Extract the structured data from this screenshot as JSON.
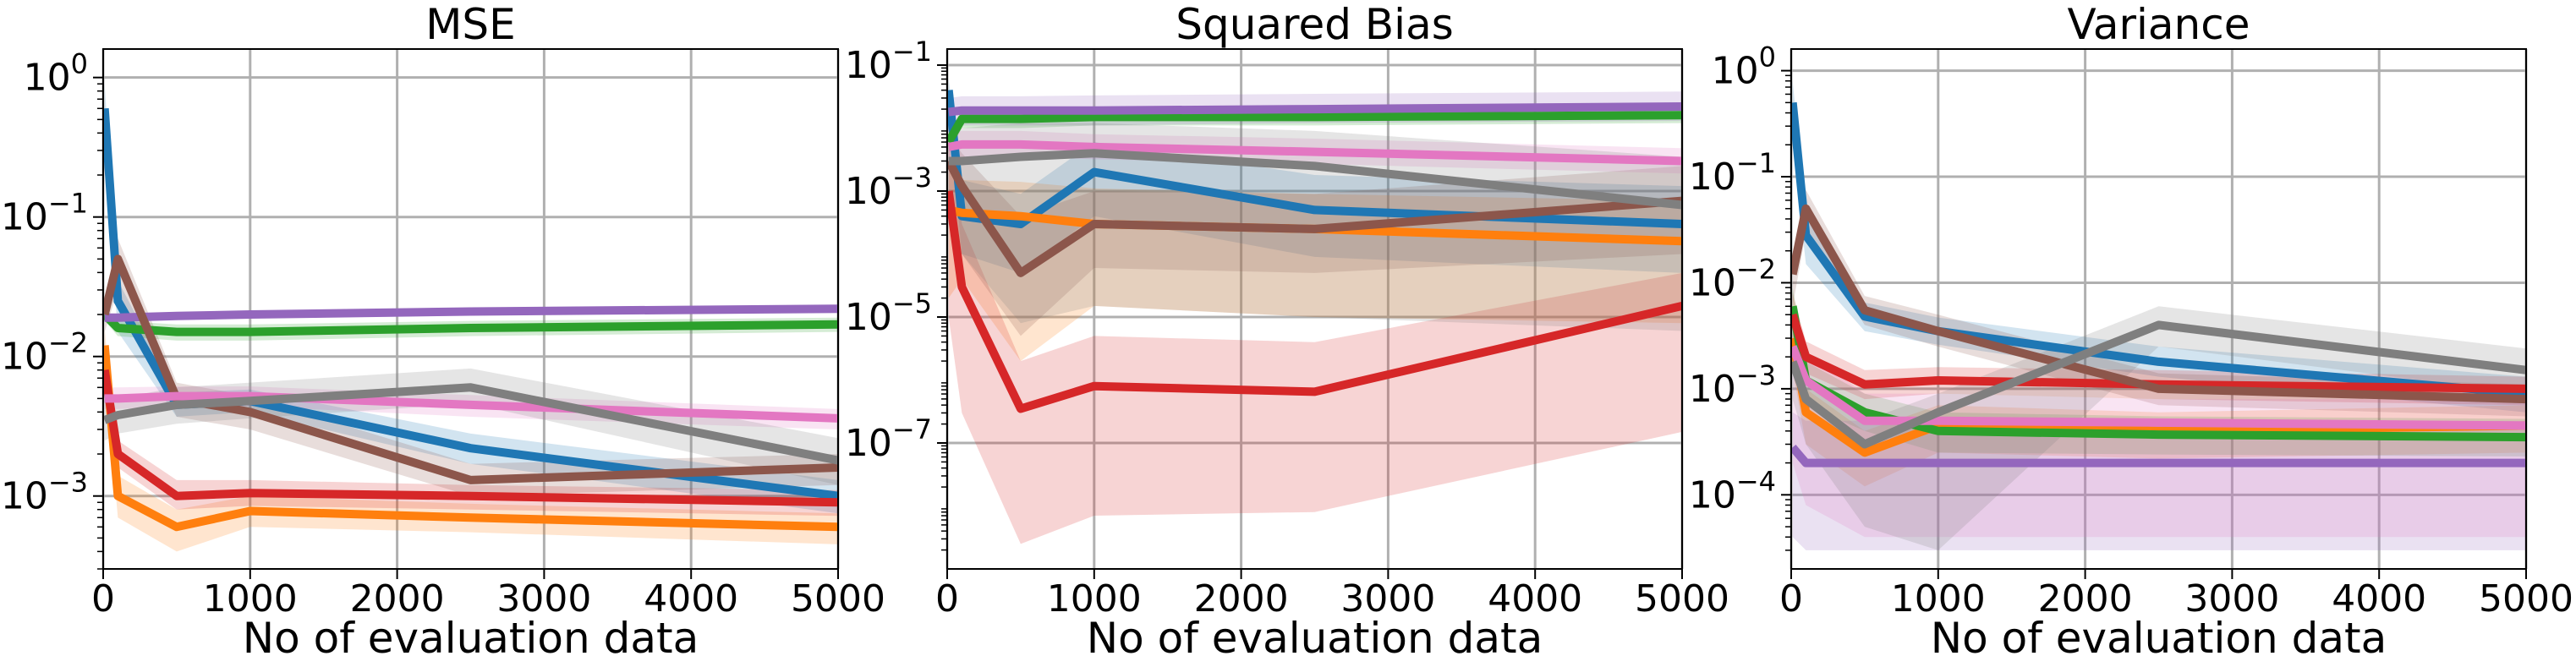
{
  "chart_data": [
    {
      "type": "line",
      "title": "MSE",
      "xlabel": "No of evaluation data",
      "ylabel": "",
      "yscale": "log",
      "xlim": [
        0,
        5000
      ],
      "ylim": [
        0.0003,
        1.6
      ],
      "grid": true,
      "x_ticks": [
        0,
        1000,
        2000,
        3000,
        4000,
        5000
      ],
      "y_ticks": [
        {
          "value": 1,
          "label": "10^0"
        },
        {
          "value": 0.1,
          "label": "10^-1"
        },
        {
          "value": 0.01,
          "label": "10^-2"
        },
        {
          "value": 0.001,
          "label": "10^-3"
        }
      ],
      "x": [
        10,
        100,
        500,
        1000,
        2500,
        5000
      ],
      "series": [
        {
          "color": "#1f77b4",
          "values": [
            0.6,
            0.025,
            0.0045,
            0.0048,
            0.0022,
            0.001
          ],
          "lower": [
            0.25,
            0.015,
            0.0037,
            0.004,
            0.0017,
            0.00075
          ],
          "upper": [
            0.9,
            0.035,
            0.0055,
            0.0058,
            0.0028,
            0.0013
          ]
        },
        {
          "color": "#ff7f0e",
          "values": [
            0.012,
            0.001,
            0.0006,
            0.00078,
            0.0007,
            0.0006
          ],
          "lower": [
            0.008,
            0.0007,
            0.0004,
            0.0006,
            0.00055,
            0.00045
          ],
          "upper": [
            0.016,
            0.0014,
            0.0008,
            0.001,
            0.00088,
            0.00075
          ]
        },
        {
          "color": "#2ca02c",
          "values": [
            0.02,
            0.016,
            0.015,
            0.015,
            0.016,
            0.017
          ],
          "lower": [
            0.018,
            0.014,
            0.013,
            0.013,
            0.014,
            0.015
          ],
          "upper": [
            0.022,
            0.018,
            0.017,
            0.017,
            0.018,
            0.019
          ]
        },
        {
          "color": "#d62728",
          "values": [
            0.008,
            0.002,
            0.001,
            0.00105,
            0.001,
            0.0009
          ],
          "lower": [
            0.006,
            0.0016,
            0.0008,
            0.00085,
            0.0008,
            0.00072
          ],
          "upper": [
            0.01,
            0.0025,
            0.0013,
            0.0013,
            0.0012,
            0.0011
          ]
        },
        {
          "color": "#9467bd",
          "values": [
            0.019,
            0.019,
            0.0195,
            0.02,
            0.021,
            0.022
          ],
          "lower": [
            0.018,
            0.018,
            0.0185,
            0.019,
            0.02,
            0.021
          ],
          "upper": [
            0.02,
            0.02,
            0.0205,
            0.021,
            0.022,
            0.023
          ]
        },
        {
          "color": "#8c564b",
          "values": [
            0.02,
            0.05,
            0.005,
            0.004,
            0.0013,
            0.0016
          ],
          "lower": [
            0.015,
            0.03,
            0.0037,
            0.003,
            0.001,
            0.0012
          ],
          "upper": [
            0.025,
            0.07,
            0.0065,
            0.0052,
            0.0017,
            0.002
          ]
        },
        {
          "color": "#e377c2",
          "values": [
            0.005,
            0.005,
            0.0052,
            0.0052,
            0.0045,
            0.0036
          ],
          "lower": [
            0.0042,
            0.0042,
            0.0044,
            0.0044,
            0.0037,
            0.003
          ],
          "upper": [
            0.006,
            0.006,
            0.0061,
            0.0061,
            0.0053,
            0.0042
          ]
        },
        {
          "color": "#7f7f7f",
          "values": [
            0.0035,
            0.0038,
            0.0045,
            0.0048,
            0.006,
            0.0018
          ],
          "lower": [
            0.0025,
            0.0028,
            0.0033,
            0.0036,
            0.0046,
            0.0012
          ],
          "upper": [
            0.0048,
            0.005,
            0.006,
            0.0065,
            0.0082,
            0.0026
          ]
        }
      ]
    },
    {
      "type": "line",
      "title": "Squared Bias",
      "xlabel": "No of evaluation data",
      "ylabel": "",
      "yscale": "log",
      "xlim": [
        0,
        5000
      ],
      "ylim": [
        1e-09,
        0.18
      ],
      "grid": true,
      "x_ticks": [
        0,
        1000,
        2000,
        3000,
        4000,
        5000
      ],
      "y_ticks": [
        {
          "value": 0.1,
          "label": "10^-1"
        },
        {
          "value": 0.001,
          "label": "10^-3"
        },
        {
          "value": 1e-05,
          "label": "10^-5"
        },
        {
          "value": 1e-07,
          "label": "10^-7"
        }
      ],
      "x": [
        10,
        100,
        500,
        1000,
        2500,
        5000
      ],
      "series": [
        {
          "color": "#1f77b4",
          "values": [
            0.04,
            0.0004,
            0.0003,
            0.002,
            0.0005,
            0.0003
          ],
          "lower": [
            0.015,
            0.0001,
            5e-05,
            0.0004,
            9e-05,
            5e-05
          ],
          "upper": [
            0.06,
            0.0015,
            0.0009,
            0.006,
            0.0018,
            0.0012
          ]
        },
        {
          "color": "#ff7f0e",
          "values": [
            0.0005,
            0.00045,
            0.0004,
            0.0003,
            0.00025,
            0.00016
          ],
          "lower": [
            2e-05,
            4e-05,
            2e-06,
            1.5e-05,
            1e-05,
            8e-06
          ],
          "upper": [
            0.002,
            0.0015,
            0.0014,
            0.0011,
            0.0009,
            0.0007
          ]
        },
        {
          "color": "#2ca02c",
          "values": [
            0.006,
            0.014,
            0.014,
            0.015,
            0.015,
            0.016
          ],
          "lower": [
            0.004,
            0.01,
            0.01,
            0.011,
            0.011,
            0.012
          ],
          "upper": [
            0.008,
            0.019,
            0.019,
            0.02,
            0.02,
            0.021
          ]
        },
        {
          "color": "#d62728",
          "values": [
            0.001,
            3e-05,
            3.5e-07,
            8e-07,
            6.5e-07,
            1.5e-05
          ],
          "lower": [
            1e-05,
            3e-07,
            2.5e-09,
            7e-09,
            8e-09,
            1.5e-07
          ],
          "upper": [
            0.005,
            0.0003,
            2e-06,
            5e-06,
            4e-06,
            5e-05
          ]
        },
        {
          "color": "#9467bd",
          "values": [
            0.018,
            0.019,
            0.019,
            0.019,
            0.02,
            0.022
          ],
          "lower": [
            0.01,
            0.011,
            0.011,
            0.011,
            0.012,
            0.013
          ],
          "upper": [
            0.03,
            0.032,
            0.032,
            0.033,
            0.035,
            0.038
          ]
        },
        {
          "color": "#8c564b",
          "values": [
            0.003,
            0.0012,
            5e-05,
            0.0003,
            0.00025,
            0.0007
          ],
          "lower": [
            0.0003,
            0.0001,
            5e-06,
            6e-05,
            5e-05,
            0.0001
          ],
          "upper": [
            0.008,
            0.004,
            0.0004,
            0.001,
            0.0009,
            0.0025
          ]
        },
        {
          "color": "#e377c2",
          "values": [
            0.005,
            0.0055,
            0.0055,
            0.005,
            0.0042,
            0.003
          ],
          "lower": [
            0.003,
            0.0035,
            0.0035,
            0.0032,
            0.0027,
            0.0019
          ],
          "upper": [
            0.008,
            0.009,
            0.009,
            0.008,
            0.0068,
            0.0048
          ]
        },
        {
          "color": "#7f7f7f",
          "values": [
            0.003,
            0.003,
            0.0035,
            0.004,
            0.0025,
            0.0006
          ],
          "lower": [
            0.0003,
            0.0001,
            8e-06,
            1.5e-05,
            1e-05,
            6e-06
          ],
          "upper": [
            0.01,
            0.01,
            0.012,
            0.012,
            0.009,
            0.0035
          ]
        }
      ]
    },
    {
      "type": "line",
      "title": "Variance",
      "xlabel": "No of evaluation data",
      "ylabel": "",
      "yscale": "log",
      "xlim": [
        0,
        5000
      ],
      "ylim": [
        2e-05,
        1.6
      ],
      "grid": true,
      "x_ticks": [
        0,
        1000,
        2000,
        3000,
        4000,
        5000
      ],
      "y_ticks": [
        {
          "value": 1,
          "label": "10^0"
        },
        {
          "value": 0.1,
          "label": "10^-1"
        },
        {
          "value": 0.01,
          "label": "10^-2"
        },
        {
          "value": 0.001,
          "label": "10^-3"
        },
        {
          "value": 0.0001,
          "label": "10^-4"
        }
      ],
      "x": [
        10,
        100,
        500,
        1000,
        2500,
        5000
      ],
      "series": [
        {
          "color": "#1f77b4",
          "values": [
            0.5,
            0.028,
            0.0048,
            0.0035,
            0.0018,
            0.0009
          ],
          "lower": [
            0.2,
            0.015,
            0.0035,
            0.0026,
            0.0013,
            0.0006
          ],
          "upper": [
            0.8,
            0.045,
            0.0065,
            0.0047,
            0.0025,
            0.0013
          ]
        },
        {
          "color": "#ff7f0e",
          "values": [
            0.003,
            0.0006,
            0.00025,
            0.00045,
            0.0004,
            0.00045
          ],
          "lower": [
            0.0015,
            0.0003,
            0.00012,
            0.00025,
            0.00022,
            0.00025
          ],
          "upper": [
            0.005,
            0.001,
            0.0004,
            0.0007,
            0.0006,
            0.0007
          ]
        },
        {
          "color": "#2ca02c",
          "values": [
            0.006,
            0.0012,
            0.0006,
            0.0004,
            0.00037,
            0.00035
          ],
          "lower": [
            0.003,
            0.0007,
            0.0004,
            0.00025,
            0.00024,
            0.00023
          ],
          "upper": [
            0.009,
            0.0018,
            0.0009,
            0.0006,
            0.00055,
            0.00052
          ]
        },
        {
          "color": "#d62728",
          "values": [
            0.005,
            0.002,
            0.0011,
            0.0012,
            0.0011,
            0.001
          ],
          "lower": [
            0.003,
            0.0014,
            0.0008,
            0.0009,
            0.0008,
            0.0007
          ],
          "upper": [
            0.008,
            0.0028,
            0.0015,
            0.0016,
            0.0015,
            0.0013
          ]
        },
        {
          "color": "#9467bd",
          "values": [
            0.00028,
            0.0002,
            0.0002,
            0.0002,
            0.0002,
            0.0002
          ],
          "lower": [
            4e-05,
            3e-05,
            3e-05,
            3e-05,
            3e-05,
            3e-05
          ],
          "upper": [
            0.0006,
            0.0005,
            0.0005,
            0.0005,
            0.0005,
            0.0005
          ]
        },
        {
          "color": "#8c564b",
          "values": [
            0.012,
            0.05,
            0.0055,
            0.0035,
            0.001,
            0.0008
          ],
          "lower": [
            0.006,
            0.03,
            0.004,
            0.0025,
            0.0007,
            0.00055
          ],
          "upper": [
            0.018,
            0.075,
            0.0075,
            0.005,
            0.0014,
            0.0011
          ]
        },
        {
          "color": "#e377c2",
          "values": [
            0.0025,
            0.0012,
            0.0005,
            0.0005,
            0.00048,
            0.00045
          ],
          "lower": [
            0.0002,
            8e-05,
            4e-05,
            4e-05,
            4e-05,
            4e-05
          ],
          "upper": [
            0.005,
            0.0022,
            0.0009,
            0.0009,
            0.0008,
            0.0008
          ]
        },
        {
          "color": "#7f7f7f",
          "values": [
            0.0018,
            0.0008,
            0.0003,
            0.0006,
            0.004,
            0.0015
          ],
          "lower": [
            0.0008,
            0.0003,
            5e-05,
            3e-05,
            0.0025,
            0.0009
          ],
          "upper": [
            0.003,
            0.0013,
            0.0005,
            0.0009,
            0.006,
            0.0024
          ]
        }
      ]
    }
  ]
}
